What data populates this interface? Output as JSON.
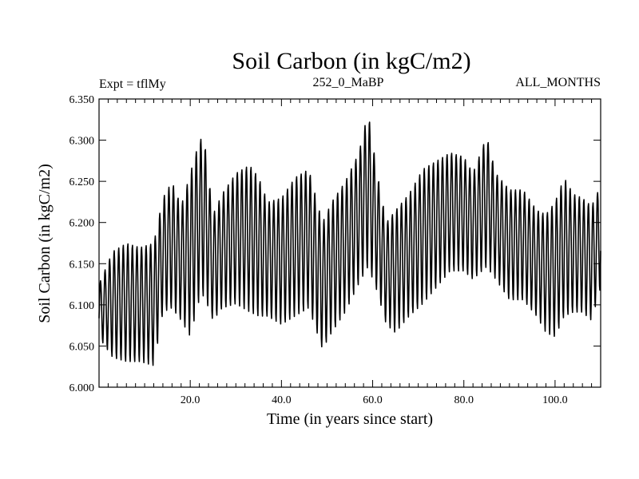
{
  "chart_data": {
    "type": "line",
    "title": "Soil Carbon (in kgC/m2)",
    "subtitle_left": "Expt = tflMy",
    "subtitle_center": "252_0_MaBP",
    "subtitle_right": "ALL_MONTHS",
    "xlabel": "Time (in years since start)",
    "ylabel": "Soil Carbon (in kgC/m2)",
    "xlim": [
      0,
      110
    ],
    "ylim": [
      6.0,
      6.35
    ],
    "x_ticks": [
      20,
      40,
      60,
      80,
      100
    ],
    "x_tick_labels": [
      "20.0",
      "40.0",
      "60.0",
      "80.0",
      "100.0"
    ],
    "y_ticks": [
      6.0,
      6.05,
      6.1,
      6.15,
      6.2,
      6.25,
      6.3,
      6.35
    ],
    "y_tick_labels": [
      "6.000",
      "6.050",
      "6.100",
      "6.150",
      "6.200",
      "6.250",
      "6.300",
      "6.350"
    ],
    "cycle_period_years": 1,
    "series": [
      {
        "name": "Soil Carbon",
        "color": "#000000",
        "annual_cycle": {
          "x": [
            0,
            3,
            6,
            9,
            12,
            14,
            16,
            18,
            20,
            22,
            23,
            25,
            27,
            30,
            33,
            35,
            37,
            40,
            43,
            46,
            49,
            51,
            54,
            57,
            59,
            61,
            63,
            65,
            68,
            71,
            74,
            77,
            80,
            82,
            85,
            87,
            90,
            93,
            96,
            98,
            100,
            102,
            104,
            106,
            108,
            110
          ],
          "max": [
            6.125,
            6.165,
            6.175,
            6.17,
            6.175,
            6.23,
            6.25,
            6.22,
            6.26,
            6.3,
            6.305,
            6.21,
            6.235,
            6.26,
            6.27,
            6.255,
            6.225,
            6.23,
            6.255,
            6.265,
            6.2,
            6.225,
            6.25,
            6.285,
            6.335,
            6.26,
            6.2,
            6.215,
            6.235,
            6.265,
            6.275,
            6.285,
            6.28,
            6.26,
            6.305,
            6.26,
            6.24,
            6.24,
            6.215,
            6.21,
            6.225,
            6.255,
            6.235,
            6.23,
            6.22,
            6.245
          ],
          "min": [
            6.06,
            6.035,
            6.03,
            6.03,
            6.025,
            6.09,
            6.095,
            6.08,
            6.06,
            6.105,
            6.11,
            6.08,
            6.095,
            6.1,
            6.09,
            6.085,
            6.085,
            6.075,
            6.085,
            6.095,
            6.045,
            6.065,
            6.09,
            6.125,
            6.145,
            6.115,
            6.075,
            6.065,
            6.085,
            6.1,
            6.12,
            6.14,
            6.14,
            6.13,
            6.145,
            6.13,
            6.105,
            6.105,
            6.085,
            6.065,
            6.06,
            6.085,
            6.09,
            6.09,
            6.08,
            6.12
          ]
        }
      }
    ]
  }
}
